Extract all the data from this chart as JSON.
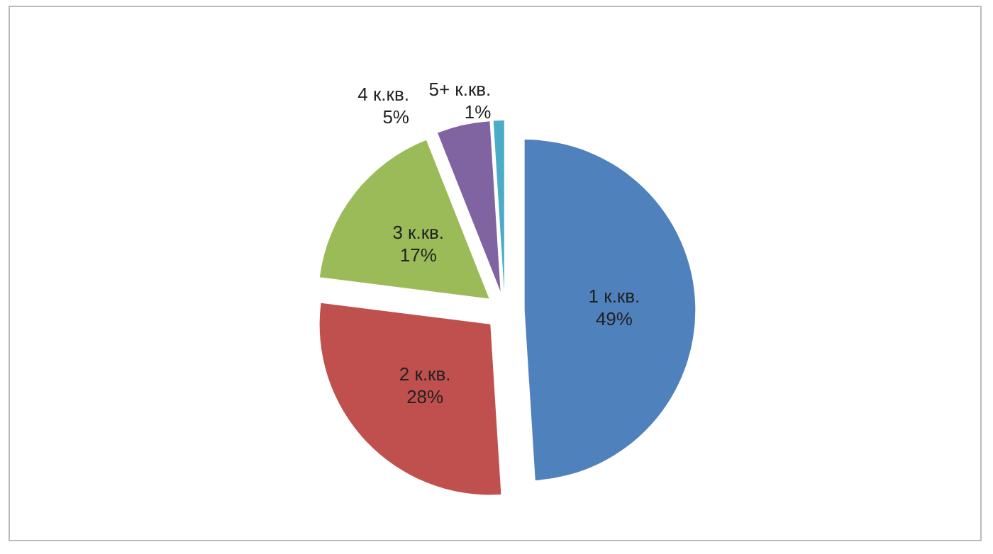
{
  "chart_data": {
    "type": "pie",
    "categories": [
      "1 к.кв.",
      "2 к.кв.",
      "3 к.кв.",
      "4 к.кв.",
      "5+ к.кв."
    ],
    "values": [
      49,
      28,
      17,
      5,
      1
    ],
    "colors": [
      "#4f81bd",
      "#c0504d",
      "#9bbb59",
      "#8064a2",
      "#4bacc6"
    ],
    "value_labels": [
      "49%",
      "28%",
      "17%",
      "5%",
      "1%"
    ]
  }
}
